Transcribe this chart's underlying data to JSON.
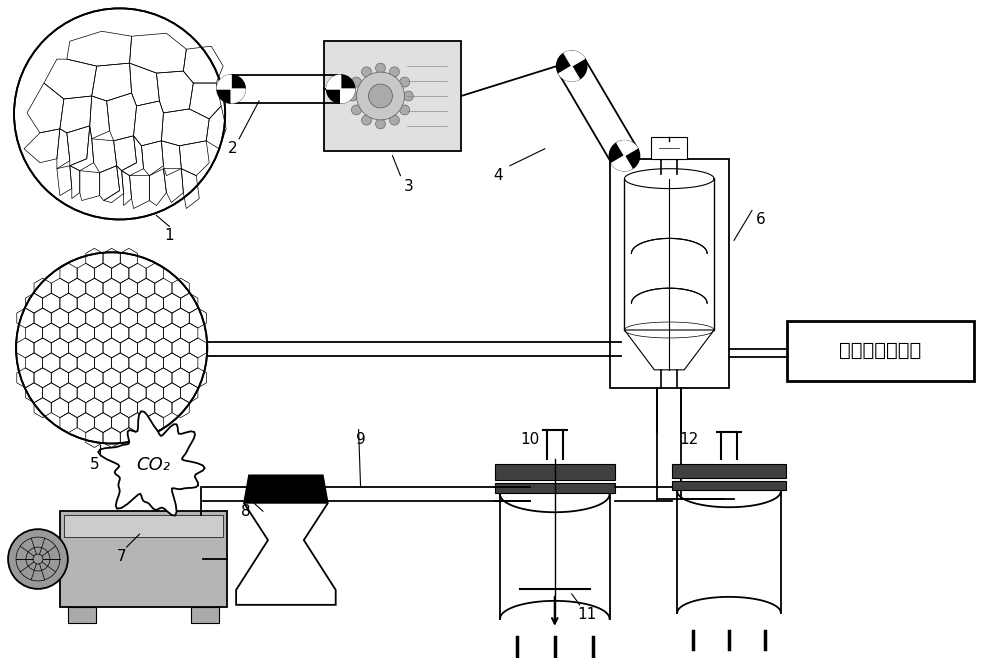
{
  "bg_color": "#ffffff",
  "lc": "#000000",
  "gray1": "#b0b0b0",
  "gray2": "#c8c8c8",
  "gray3": "#888888",
  "dark": "#444444",
  "box_text": "井下待充填空间",
  "co2_text": "CO₂",
  "lw": 1.3,
  "fig_w": 10.0,
  "fig_h": 6.59,
  "dpi": 100,
  "labels": {
    "1": [
      165,
      192,
      "1"
    ],
    "2": [
      228,
      140,
      "2"
    ],
    "3": [
      400,
      175,
      "3"
    ],
    "4": [
      490,
      163,
      "4"
    ],
    "5": [
      93,
      390,
      "5"
    ],
    "6": [
      757,
      213,
      "6"
    ],
    "7": [
      120,
      548,
      "7"
    ],
    "8": [
      247,
      503,
      "8"
    ],
    "9": [
      358,
      432,
      "9"
    ],
    "10": [
      527,
      432,
      "10"
    ],
    "11": [
      581,
      605,
      "11"
    ],
    "12": [
      686,
      432,
      "12"
    ]
  }
}
